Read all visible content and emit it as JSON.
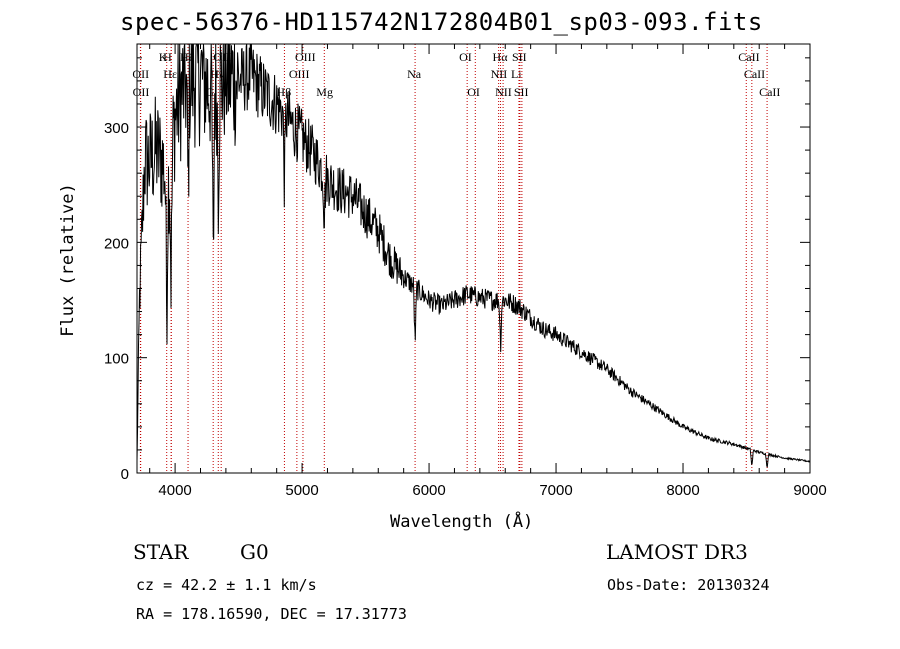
{
  "title": "spec-56376-HD115742N172804B01_sp03-093.fits",
  "info": {
    "object_type": "STAR",
    "object_class": "G0",
    "survey": "LAMOST DR3",
    "cz": "cz = 42.2 ± 1.1 km/s",
    "obs_date": "Obs-Date: 20130324",
    "radec": "RA = 178.16590, DEC =  17.31773"
  },
  "colors": {
    "spectrum": "#000000",
    "line_marker": "#c00000",
    "axes": "#000000"
  },
  "chart_data": {
    "type": "line",
    "title": "spec-56376-HD115742N172804B01_sp03-093.fits",
    "xlabel": "Wavelength (Å)",
    "ylabel": "Flux (relative)",
    "xlim": [
      3700,
      9000
    ],
    "ylim": [
      0,
      372
    ],
    "xticks": [
      4000,
      5000,
      6000,
      7000,
      8000,
      9000
    ],
    "yticks": [
      0,
      100,
      200,
      300
    ],
    "continuum_points": [
      [
        3700,
        10
      ],
      [
        3720,
        150
      ],
      [
        3760,
        270
      ],
      [
        3800,
        270
      ],
      [
        3850,
        280
      ],
      [
        3900,
        270
      ],
      [
        3950,
        250
      ],
      [
        4000,
        310
      ],
      [
        4050,
        330
      ],
      [
        4100,
        340
      ],
      [
        4200,
        345
      ],
      [
        4300,
        330
      ],
      [
        4400,
        345
      ],
      [
        4500,
        340
      ],
      [
        4600,
        345
      ],
      [
        4700,
        330
      ],
      [
        4800,
        320
      ],
      [
        4900,
        305
      ],
      [
        5000,
        290
      ],
      [
        5100,
        275
      ],
      [
        5200,
        255
      ],
      [
        5300,
        245
      ],
      [
        5400,
        240
      ],
      [
        5500,
        225
      ],
      [
        5600,
        210
      ],
      [
        5700,
        185
      ],
      [
        5800,
        170
      ],
      [
        5900,
        160
      ],
      [
        6000,
        150
      ],
      [
        6100,
        145
      ],
      [
        6200,
        150
      ],
      [
        6300,
        155
      ],
      [
        6400,
        152
      ],
      [
        6500,
        150
      ],
      [
        6600,
        150
      ],
      [
        6700,
        145
      ],
      [
        6800,
        135
      ],
      [
        6900,
        125
      ],
      [
        7000,
        120
      ],
      [
        7200,
        105
      ],
      [
        7400,
        90
      ],
      [
        7600,
        70
      ],
      [
        7800,
        55
      ],
      [
        8000,
        40
      ],
      [
        8200,
        30
      ],
      [
        8400,
        25
      ],
      [
        8600,
        18
      ],
      [
        8800,
        13
      ],
      [
        9000,
        10
      ]
    ],
    "absorption_features": [
      {
        "wavelength": 3934,
        "depth": 120
      },
      {
        "wavelength": 3969,
        "depth": 110
      },
      {
        "wavelength": 4102,
        "depth": 100
      },
      {
        "wavelength": 4300,
        "depth": 160
      },
      {
        "wavelength": 4340,
        "depth": 80
      },
      {
        "wavelength": 4861,
        "depth": 60
      },
      {
        "wavelength": 5175,
        "depth": 40
      },
      {
        "wavelength": 5890,
        "depth": 50
      },
      {
        "wavelength": 6563,
        "depth": 40
      },
      {
        "wavelength": 8542,
        "depth": 15
      },
      {
        "wavelength": 8662,
        "depth": 12
      }
    ],
    "spectral_lines": [
      {
        "label": "Hδ",
        "wavelength": 4102,
        "row": 1
      },
      {
        "label": "K",
        "wavelength": 3934,
        "row": 1
      },
      {
        "label": "H",
        "wavelength": 3969,
        "row": 1
      },
      {
        "label": "Hε",
        "wavelength": 3970,
        "row": 2
      },
      {
        "label": "OII",
        "wavelength": 3727,
        "row": 2
      },
      {
        "label": "OII",
        "wavelength": 3729,
        "row": 3
      },
      {
        "label": "Hγ",
        "wavelength": 4340,
        "row": 2
      },
      {
        "label": "G",
        "wavelength": 4300,
        "row": 3
      },
      {
        "label": "OIII",
        "wavelength": 4363,
        "row": 1
      },
      {
        "label": "Hβ",
        "wavelength": 4861,
        "row": 3
      },
      {
        "label": "OIII",
        "wavelength": 4959,
        "row": 2
      },
      {
        "label": "OIII",
        "wavelength": 5007,
        "row": 1
      },
      {
        "label": "Mg",
        "wavelength": 5175,
        "row": 3
      },
      {
        "label": "Na",
        "wavelength": 5890,
        "row": 2
      },
      {
        "label": "OI",
        "wavelength": 6300,
        "row": 1
      },
      {
        "label": "OI",
        "wavelength": 6364,
        "row": 3
      },
      {
        "label": "Hα",
        "wavelength": 6563,
        "row": 1
      },
      {
        "label": "NII",
        "wavelength": 6548,
        "row": 2
      },
      {
        "label": "NII",
        "wavelength": 6583,
        "row": 3
      },
      {
        "label": "Li",
        "wavelength": 6708,
        "row": 2
      },
      {
        "label": "SII",
        "wavelength": 6716,
        "row": 1
      },
      {
        "label": "SII",
        "wavelength": 6731,
        "row": 3
      },
      {
        "label": "CaII",
        "wavelength": 8498,
        "row": 1
      },
      {
        "label": "CaII",
        "wavelength": 8542,
        "row": 2
      },
      {
        "label": "CaII",
        "wavelength": 8662,
        "row": 3
      }
    ]
  }
}
